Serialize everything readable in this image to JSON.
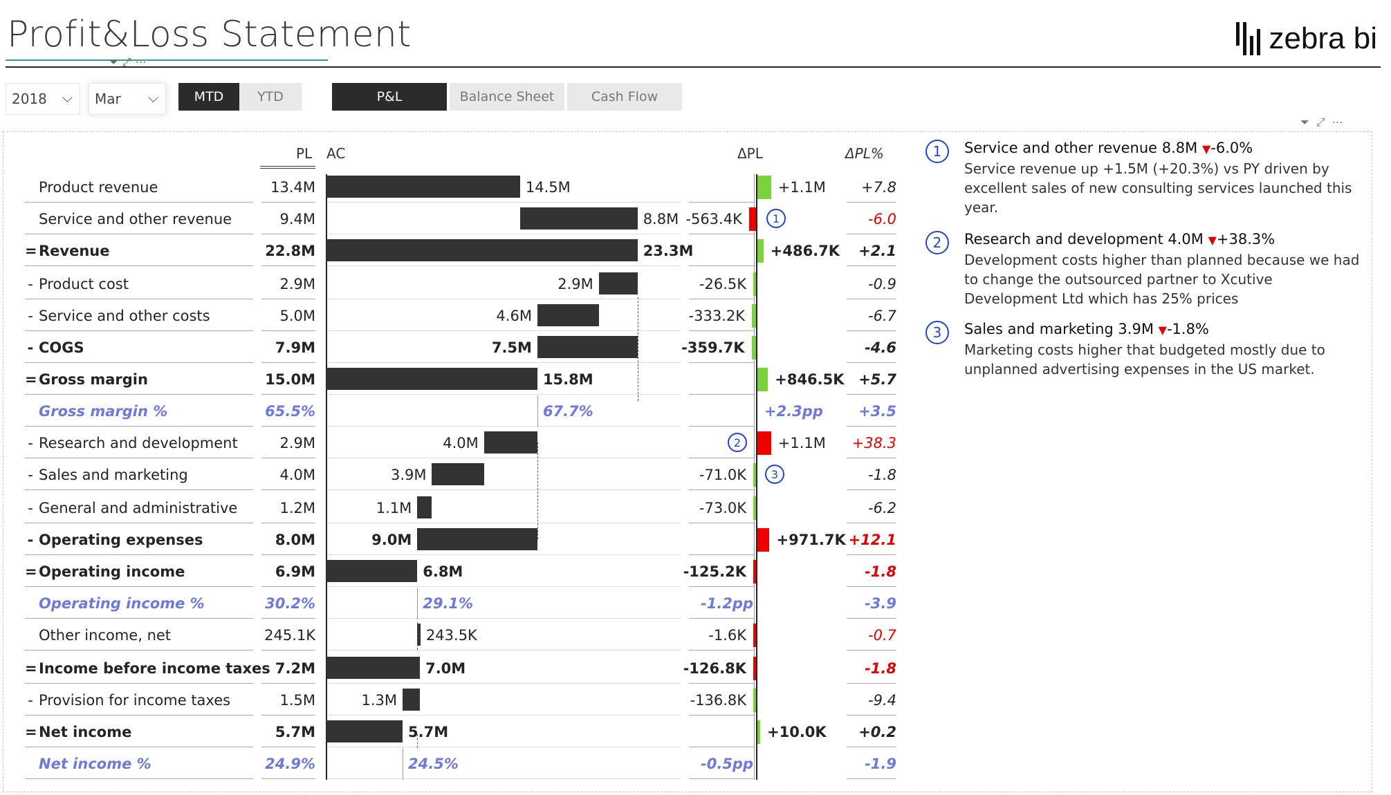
{
  "header": {
    "title": "Profit&Loss Statement",
    "brand": "zebra bi"
  },
  "filters": {
    "year": "2018",
    "month": "Mar",
    "period_toggle": [
      "MTD",
      "YTD"
    ],
    "period_selected": "MTD",
    "report_tabs": [
      "P&L",
      "Balance Sheet",
      "Cash Flow"
    ],
    "report_selected": "P&L"
  },
  "columns": {
    "pl": "PL",
    "ac": "AC",
    "dpl": "ΔPL",
    "dplp": "ΔPL%"
  },
  "rows": [
    {
      "prefix": "",
      "label": "Product revenue",
      "pl": "13.4M",
      "ac": "14.5M",
      "dpl": "+1.1M",
      "dplp": "+7.8",
      "bold": false,
      "pct": false
    },
    {
      "prefix": "",
      "label": "Service and other revenue",
      "pl": "9.4M",
      "ac": "8.8M",
      "dpl": "-563.4K",
      "dplp": "-6.0",
      "bold": false,
      "pct": false
    },
    {
      "prefix": "=",
      "label": "Revenue",
      "pl": "22.8M",
      "ac": "23.3M",
      "dpl": "+486.7K",
      "dplp": "+2.1",
      "bold": true,
      "pct": false
    },
    {
      "prefix": "-",
      "label": "Product cost",
      "pl": "2.9M",
      "ac": "2.9M",
      "dpl": "-26.5K",
      "dplp": "-0.9",
      "bold": false,
      "pct": false
    },
    {
      "prefix": "-",
      "label": "Service and other costs",
      "pl": "5.0M",
      "ac": "4.6M",
      "dpl": "-333.2K",
      "dplp": "-6.7",
      "bold": false,
      "pct": false
    },
    {
      "prefix": "-",
      "label": "COGS",
      "pl": "7.9M",
      "ac": "7.5M",
      "dpl": "-359.7K",
      "dplp": "-4.6",
      "bold": true,
      "pct": false
    },
    {
      "prefix": "=",
      "label": "Gross margin",
      "pl": "15.0M",
      "ac": "15.8M",
      "dpl": "+846.5K",
      "dplp": "+5.7",
      "bold": true,
      "pct": false
    },
    {
      "prefix": "",
      "label": "Gross margin %",
      "pl": "65.5%",
      "ac": "67.7%",
      "dpl": "+2.3pp",
      "dplp": "+3.5",
      "bold": false,
      "pct": true
    },
    {
      "prefix": "-",
      "label": "Research and development",
      "pl": "2.9M",
      "ac": "4.0M",
      "dpl": "+1.1M",
      "dplp": "+38.3",
      "bold": false,
      "pct": false
    },
    {
      "prefix": "-",
      "label": "Sales and marketing",
      "pl": "4.0M",
      "ac": "3.9M",
      "dpl": "-71.0K",
      "dplp": "-1.8",
      "bold": false,
      "pct": false
    },
    {
      "prefix": "-",
      "label": "General and administrative",
      "pl": "1.2M",
      "ac": "1.1M",
      "dpl": "-73.0K",
      "dplp": "-6.2",
      "bold": false,
      "pct": false
    },
    {
      "prefix": "-",
      "label": "Operating expenses",
      "pl": "8.0M",
      "ac": "9.0M",
      "dpl": "+971.7K",
      "dplp": "+12.1",
      "bold": true,
      "pct": false
    },
    {
      "prefix": "=",
      "label": "Operating income",
      "pl": "6.9M",
      "ac": "6.8M",
      "dpl": "-125.2K",
      "dplp": "-1.8",
      "bold": true,
      "pct": false
    },
    {
      "prefix": "",
      "label": "Operating income %",
      "pl": "30.2%",
      "ac": "29.1%",
      "dpl": "-1.2pp",
      "dplp": "-3.9",
      "bold": false,
      "pct": true
    },
    {
      "prefix": "",
      "label": "Other income, net",
      "pl": "245.1K",
      "ac": "243.5K",
      "dpl": "-1.6K",
      "dplp": "-0.7",
      "bold": false,
      "pct": false
    },
    {
      "prefix": "=",
      "label": "Income before income taxes",
      "pl": "7.2M",
      "ac": "7.0M",
      "dpl": "-126.8K",
      "dplp": "-1.8",
      "bold": true,
      "pct": false
    },
    {
      "prefix": "-",
      "label": "Provision for income taxes",
      "pl": "1.5M",
      "ac": "1.3M",
      "dpl": "-136.8K",
      "dplp": "-9.4",
      "bold": false,
      "pct": false
    },
    {
      "prefix": "=",
      "label": "Net income",
      "pl": "5.7M",
      "ac": "5.7M",
      "dpl": "+10.0K",
      "dplp": "+0.2",
      "bold": true,
      "pct": false
    },
    {
      "prefix": "",
      "label": "Net income %",
      "pl": "24.9%",
      "ac": "24.5%",
      "dpl": "-0.5pp",
      "dplp": "-1.9",
      "bold": false,
      "pct": true
    }
  ],
  "chart_data": {
    "type": "bar",
    "title": "",
    "categories": [
      "Product revenue",
      "Service and other revenue",
      "Revenue",
      "Product cost",
      "Service and other costs",
      "COGS",
      "Gross margin",
      "Research and development",
      "Sales and marketing",
      "General and administrative",
      "Operating expenses",
      "Operating income",
      "Other income, net",
      "Income before income taxes",
      "Provision for income taxes",
      "Net income"
    ],
    "series": [
      {
        "name": "AC",
        "values": [
          14.5,
          8.8,
          23.3,
          2.9,
          4.6,
          7.5,
          15.8,
          4.0,
          3.9,
          1.1,
          9.0,
          6.8,
          0.2435,
          7.0,
          1.3,
          5.7
        ]
      },
      {
        "name": "ΔPL",
        "values": [
          1.1,
          -0.5634,
          0.4867,
          -0.0265,
          -0.3332,
          -0.3597,
          0.8465,
          1.1,
          -0.071,
          -0.073,
          0.9717,
          -0.1252,
          -0.0016,
          -0.1268,
          -0.1368,
          0.01
        ]
      }
    ],
    "unit": "M"
  },
  "comments": [
    {
      "num": "1",
      "heading": "Service and other revenue 8.8M",
      "delta": "-6.0%",
      "body": "Service revenue up +1.5M (+20.3%) vs PY driven by excellent sales of new consulting services launched this year."
    },
    {
      "num": "2",
      "heading": "Research and development 4.0M",
      "delta": "+38.3%",
      "body": "Development costs higher than planned because we had to change the outsourced partner to Xcutive Development Ltd which has 25% prices"
    },
    {
      "num": "3",
      "heading": "Sales and marketing 3.9M",
      "delta": "-1.8%",
      "body": "Marketing costs higher that budgeted mostly due to unplanned advertising expenses in the US market."
    }
  ],
  "markers": {
    "m1": "1",
    "m2": "2",
    "m3": "3"
  },
  "colors": {
    "positive": "#7cd23c",
    "negative": "#ee0000",
    "bar": "#333333",
    "percent_row": "#6f7ad8",
    "comment_marker": "#2244cc"
  },
  "icons": [
    "filter-icon",
    "focus-mode-icon",
    "more-options-icon",
    "chevron-down-icon"
  ]
}
